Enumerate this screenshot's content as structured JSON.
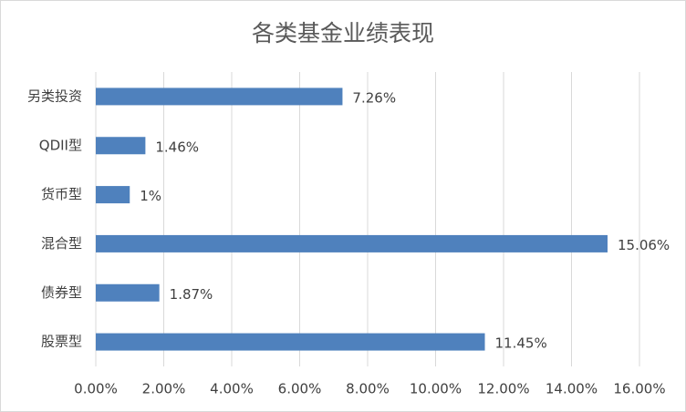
{
  "chart_data": {
    "type": "bar",
    "orientation": "horizontal",
    "title": "各类基金业绩表现",
    "categories": [
      "另类投资",
      "QDII型",
      "货币型",
      "混合型",
      "债券型",
      "股票型"
    ],
    "values": [
      7.26,
      1.46,
      1,
      15.06,
      1.87,
      11.45
    ],
    "value_labels": [
      "7.26%",
      "1.46%",
      "1%",
      "15.06%",
      "1.87%",
      "11.45%"
    ],
    "color": "#4f81bd",
    "xlim": [
      0,
      16
    ],
    "xticks": [
      {
        "value": 0,
        "label": "0.00%"
      },
      {
        "value": 2,
        "label": "2.00%"
      },
      {
        "value": 4,
        "label": "4.00%"
      },
      {
        "value": 6,
        "label": "6.00%"
      },
      {
        "value": 8,
        "label": "8.00%"
      },
      {
        "value": 10,
        "label": "10.00%"
      },
      {
        "value": 12,
        "label": "12.00%"
      },
      {
        "value": 14,
        "label": "14.00%"
      },
      {
        "value": 16,
        "label": "16.00%"
      }
    ],
    "grid": true
  }
}
